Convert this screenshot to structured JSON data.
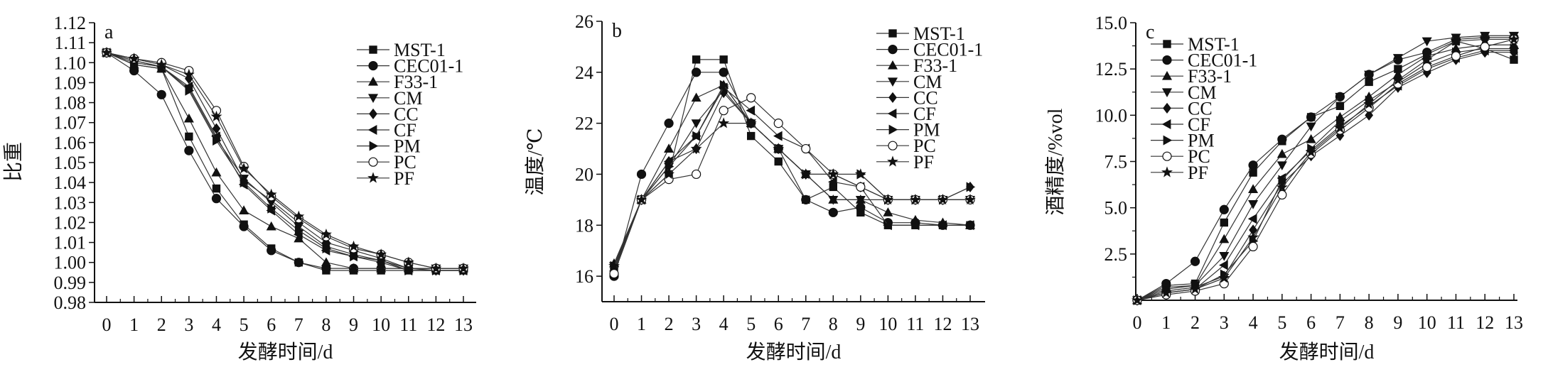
{
  "chart_data": [
    {
      "type": "line",
      "panel_label": "a",
      "xlabel": "发酵时间/d",
      "ylabel": "比重",
      "x": [
        0,
        1,
        2,
        3,
        4,
        5,
        6,
        7,
        8,
        9,
        10,
        11,
        12,
        13
      ],
      "xlim": [
        0,
        13
      ],
      "ylim": [
        0.98,
        1.12
      ],
      "yticks": [
        "0.98",
        "0.99",
        "1.00",
        "1.01",
        "1.02",
        "1.03",
        "1.04",
        "1.05",
        "1.06",
        "1.07",
        "1.08",
        "1.09",
        "1.10",
        "1.11",
        "1.12"
      ],
      "ytick_values": [
        0.98,
        0.99,
        1.0,
        1.01,
        1.02,
        1.03,
        1.04,
        1.05,
        1.06,
        1.07,
        1.08,
        1.09,
        1.1,
        1.11,
        1.12
      ],
      "legend_position": "top-right",
      "series": [
        {
          "name": "MST-1",
          "marker": "square",
          "values": [
            1.105,
            1.099,
            1.097,
            1.063,
            1.037,
            1.019,
            1.007,
            1.0,
            0.996,
            0.996,
            0.996,
            0.996,
            0.996,
            0.996
          ]
        },
        {
          "name": "CEC01-1",
          "marker": "circle",
          "values": [
            1.105,
            1.096,
            1.084,
            1.056,
            1.032,
            1.018,
            1.006,
            1.0,
            0.997,
            0.997,
            0.997,
            0.997,
            0.997,
            0.997
          ]
        },
        {
          "name": "F33-1",
          "marker": "triangle-up",
          "values": [
            1.105,
            1.099,
            1.097,
            1.072,
            1.045,
            1.026,
            1.018,
            1.012,
            1.0,
            0.997,
            0.997,
            0.997,
            0.997,
            0.997
          ]
        },
        {
          "name": "CM",
          "marker": "triangle-down",
          "values": [
            1.105,
            1.101,
            1.098,
            1.087,
            1.062,
            1.042,
            1.03,
            1.018,
            1.008,
            1.004,
            1.001,
            0.997,
            0.997,
            0.997
          ]
        },
        {
          "name": "CC",
          "marker": "diamond",
          "values": [
            1.105,
            1.102,
            1.099,
            1.092,
            1.067,
            1.041,
            1.031,
            1.02,
            1.01,
            1.006,
            1.002,
            0.997,
            0.996,
            0.996
          ]
        },
        {
          "name": "CF",
          "marker": "triangle-left",
          "values": [
            1.105,
            1.1,
            1.098,
            1.088,
            1.063,
            1.039,
            1.026,
            1.014,
            1.006,
            1.003,
            1.0,
            0.996,
            0.996,
            0.996
          ]
        },
        {
          "name": "PM",
          "marker": "triangle-right",
          "values": [
            1.105,
            1.101,
            1.098,
            1.086,
            1.061,
            1.04,
            1.027,
            1.016,
            1.007,
            1.003,
            1.001,
            0.996,
            0.996,
            0.996
          ]
        },
        {
          "name": "PC",
          "marker": "open-circle",
          "values": [
            1.105,
            1.102,
            1.1,
            1.096,
            1.076,
            1.048,
            1.033,
            1.022,
            1.013,
            1.007,
            1.004,
            1.0,
            0.997,
            0.997
          ]
        },
        {
          "name": "PF",
          "marker": "star",
          "values": [
            1.105,
            1.102,
            1.099,
            1.094,
            1.073,
            1.047,
            1.034,
            1.023,
            1.014,
            1.008,
            1.004,
            1.0,
            0.997,
            0.997
          ]
        }
      ]
    },
    {
      "type": "line",
      "panel_label": "b",
      "xlabel": "发酵时间/d",
      "ylabel": "温度/℃",
      "x": [
        0,
        1,
        2,
        3,
        4,
        5,
        6,
        7,
        8,
        9,
        10,
        11,
        12,
        13
      ],
      "xlim": [
        0,
        13
      ],
      "ylim": [
        15,
        26
      ],
      "yticks": [
        "16",
        "18",
        "20",
        "22",
        "24",
        "26"
      ],
      "ytick_values": [
        16,
        18,
        20,
        22,
        24,
        26
      ],
      "legend_position": "top-right",
      "series": [
        {
          "name": "MST-1",
          "marker": "square",
          "values": [
            16.3,
            19,
            20,
            24.5,
            24.5,
            21.5,
            20.5,
            19,
            19.5,
            18.5,
            18,
            18,
            18,
            18
          ]
        },
        {
          "name": "CEC01-1",
          "marker": "circle",
          "values": [
            16,
            20,
            22,
            24,
            24,
            22,
            21,
            19,
            18.5,
            18.7,
            18.1,
            18.1,
            18,
            18
          ]
        },
        {
          "name": "F33-1",
          "marker": "triangle-up",
          "values": [
            16.5,
            19,
            21,
            23,
            23.5,
            22,
            21,
            20,
            19,
            19,
            18.5,
            18.2,
            18.1,
            18
          ]
        },
        {
          "name": "CM",
          "marker": "triangle-down",
          "values": [
            16.4,
            19,
            20.3,
            22,
            23.3,
            22,
            21,
            20,
            19,
            19,
            19,
            19,
            19,
            19
          ]
        },
        {
          "name": "CC",
          "marker": "diamond",
          "values": [
            16.3,
            19,
            20.5,
            21,
            23.2,
            22,
            21,
            20,
            20,
            19.5,
            19,
            19,
            19,
            19.5
          ]
        },
        {
          "name": "CF",
          "marker": "triangle-left",
          "values": [
            16.2,
            19,
            20.5,
            21.5,
            23.4,
            22.5,
            21.5,
            21,
            19.7,
            19.5,
            18,
            18,
            18,
            18
          ]
        },
        {
          "name": "PM",
          "marker": "triangle-right",
          "values": [
            16.4,
            19,
            20.3,
            21.5,
            23.5,
            22,
            21,
            20,
            20,
            20,
            19,
            19,
            19,
            19.5
          ]
        },
        {
          "name": "PC",
          "marker": "open-circle",
          "values": [
            16.1,
            19,
            19.8,
            20,
            22.5,
            23,
            22,
            21,
            20,
            19.5,
            19,
            19,
            19,
            19
          ]
        },
        {
          "name": "PF",
          "marker": "star",
          "values": [
            16.4,
            19,
            20,
            21,
            22,
            22,
            21,
            20,
            20,
            20,
            19,
            19,
            19,
            19
          ]
        }
      ]
    },
    {
      "type": "line",
      "panel_label": "c",
      "xlabel": "发酵时间/d",
      "ylabel": "酒精度/%vol",
      "x": [
        0,
        1,
        2,
        3,
        4,
        5,
        6,
        7,
        8,
        9,
        10,
        11,
        12,
        13
      ],
      "xlim": [
        0,
        13
      ],
      "ylim": [
        0,
        15
      ],
      "yticks": [
        "2.5",
        "5.0",
        "7.5",
        "10.0",
        "12.5",
        "15.0"
      ],
      "ytick_values": [
        2.5,
        5,
        7.5,
        10,
        12.5,
        15
      ],
      "legend_position": "top-left",
      "series": [
        {
          "name": "MST-1",
          "marker": "square",
          "values": [
            0,
            0.8,
            0.9,
            4.2,
            6.9,
            8.6,
            9.9,
            10.5,
            11.8,
            12.5,
            13.3,
            14.0,
            13.6,
            13.0
          ]
        },
        {
          "name": "CEC01-1",
          "marker": "circle",
          "values": [
            0,
            0.9,
            2.1,
            4.9,
            7.3,
            8.7,
            9.9,
            11.0,
            12.2,
            13.0,
            13.4,
            14.1,
            14.2,
            14.2
          ]
        },
        {
          "name": "F33-1",
          "marker": "triangle-up",
          "values": [
            0,
            0.7,
            0.8,
            3.3,
            6.0,
            7.9,
            8.7,
            9.9,
            11.0,
            12.2,
            13.2,
            13.6,
            13.8,
            13.8
          ]
        },
        {
          "name": "CM",
          "marker": "triangle-down",
          "values": [
            0,
            0.6,
            0.8,
            2.4,
            5.2,
            7.3,
            9.4,
            11.0,
            12.2,
            13.1,
            14.0,
            14.2,
            14.3,
            14.3
          ]
        },
        {
          "name": "CC",
          "marker": "diamond",
          "values": [
            0,
            0.5,
            0.7,
            1.3,
            3.8,
            6.3,
            7.8,
            8.9,
            10.0,
            11.5,
            12.3,
            13.0,
            13.4,
            13.4
          ]
        },
        {
          "name": "CF",
          "marker": "triangle-left",
          "values": [
            0,
            0.4,
            0.6,
            1.9,
            4.4,
            6.6,
            8.1,
            9.4,
            10.5,
            11.6,
            12.5,
            13.1,
            13.5,
            13.5
          ]
        },
        {
          "name": "PM",
          "marker": "triangle-right",
          "values": [
            0,
            0.4,
            0.6,
            1.4,
            3.2,
            6.5,
            8.2,
            9.7,
            10.8,
            11.8,
            12.8,
            13.4,
            13.6,
            13.6
          ]
        },
        {
          "name": "PC",
          "marker": "open-circle",
          "values": [
            0,
            0.3,
            0.5,
            0.9,
            2.9,
            5.7,
            7.9,
            9.2,
            10.4,
            11.7,
            12.6,
            13.2,
            13.7,
            14.1
          ]
        },
        {
          "name": "PF",
          "marker": "star",
          "values": [
            0,
            0.4,
            0.6,
            1.2,
            3.4,
            6.1,
            8.0,
            9.3,
            10.6,
            11.9,
            13.0,
            14.0,
            14.1,
            14.1
          ]
        }
      ]
    }
  ]
}
